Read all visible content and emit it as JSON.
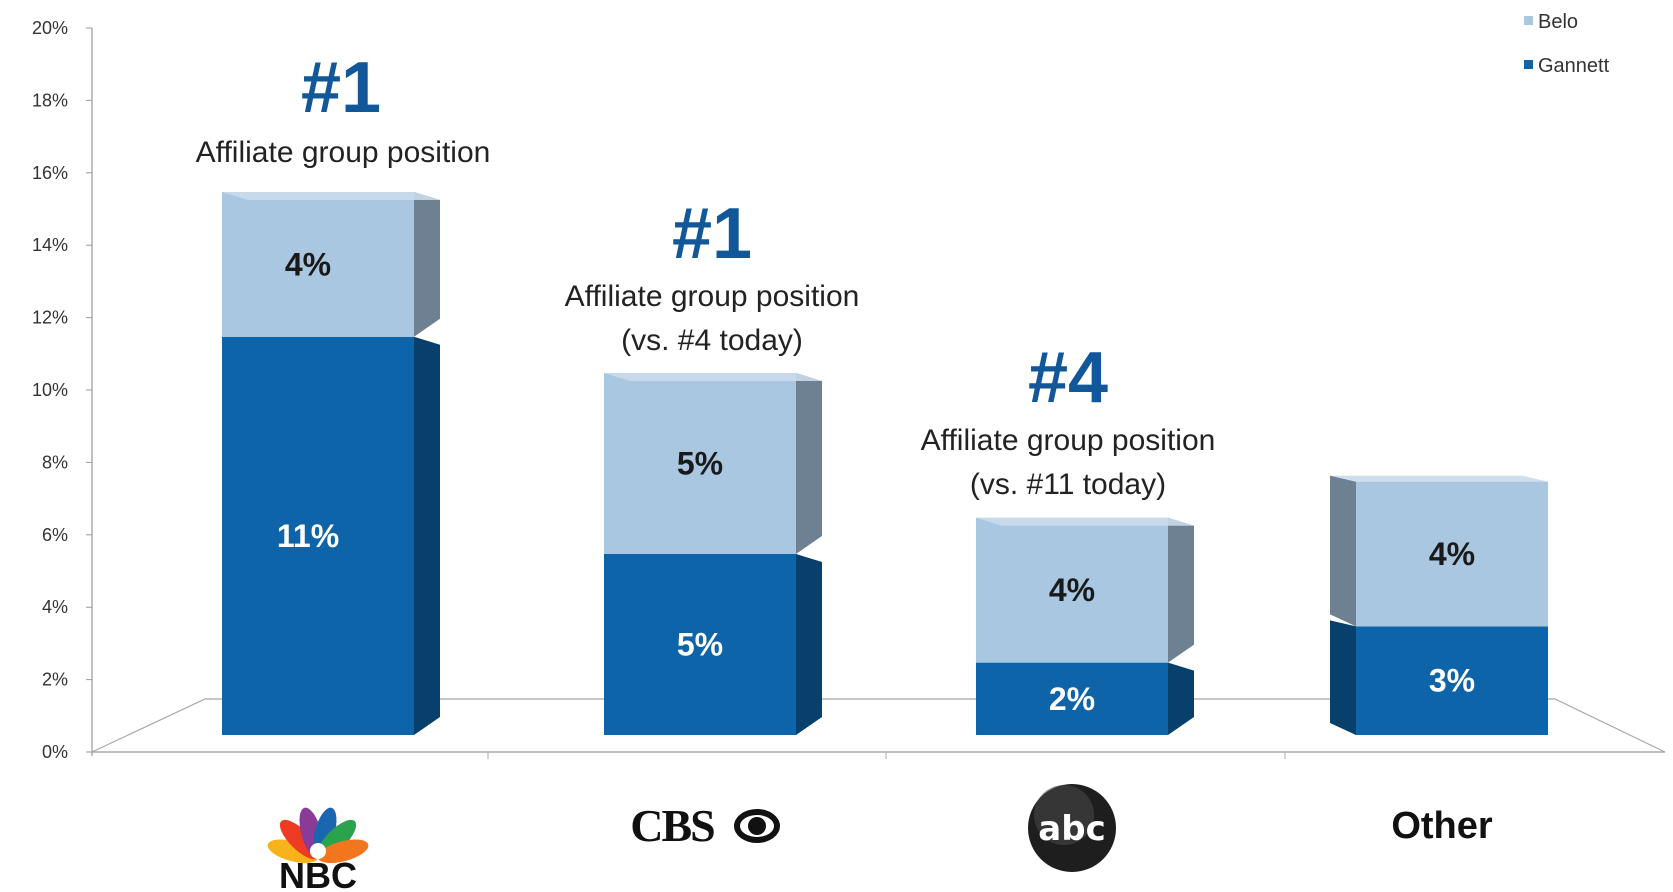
{
  "chart_data": {
    "type": "bar",
    "stacked": true,
    "three_d": true,
    "categories": [
      "NBC",
      "CBS",
      "abc",
      "Other"
    ],
    "series": [
      {
        "name": "Gannett",
        "values": [
          11,
          5,
          2,
          3
        ],
        "value_labels": [
          "11%",
          "5%",
          "2%",
          "3%"
        ]
      },
      {
        "name": "Belo",
        "values": [
          4,
          5,
          4,
          4
        ],
        "value_labels": [
          "4%",
          "5%",
          "4%",
          "4%"
        ]
      }
    ],
    "ylim": [
      0,
      20
    ],
    "y_ticks": [
      "0%",
      "2%",
      "4%",
      "6%",
      "8%",
      "10%",
      "12%",
      "14%",
      "16%",
      "18%",
      "20%"
    ],
    "legend": {
      "position": "top-right",
      "entries": [
        "Belo",
        "Gannett"
      ]
    },
    "annotations": [
      {
        "category": "NBC",
        "rank": "#1",
        "lines": [
          "Affiliate group position"
        ]
      },
      {
        "category": "CBS",
        "rank": "#1",
        "lines": [
          "Affiliate group position",
          "(vs. #4 today)"
        ]
      },
      {
        "category": "abc",
        "rank": "#4",
        "lines": [
          "Affiliate group position",
          "(vs. #11 today)"
        ]
      }
    ],
    "category_logos": [
      {
        "category": "NBC",
        "icon": "nbc-peacock-logo",
        "text": "NBC"
      },
      {
        "category": "CBS",
        "icon": "cbs-eye-logo",
        "text": "CBS"
      },
      {
        "category": "abc",
        "icon": "abc-circle-logo",
        "text": "abc"
      },
      {
        "category": "Other",
        "icon": "",
        "text": "Other"
      }
    ],
    "colors": {
      "Gannett": "#0e64a8",
      "Belo": "#a9c7e1",
      "rank_text": "#11579a",
      "gannett_label": "#ffffff",
      "belo_label": "#1a1a1a"
    }
  }
}
